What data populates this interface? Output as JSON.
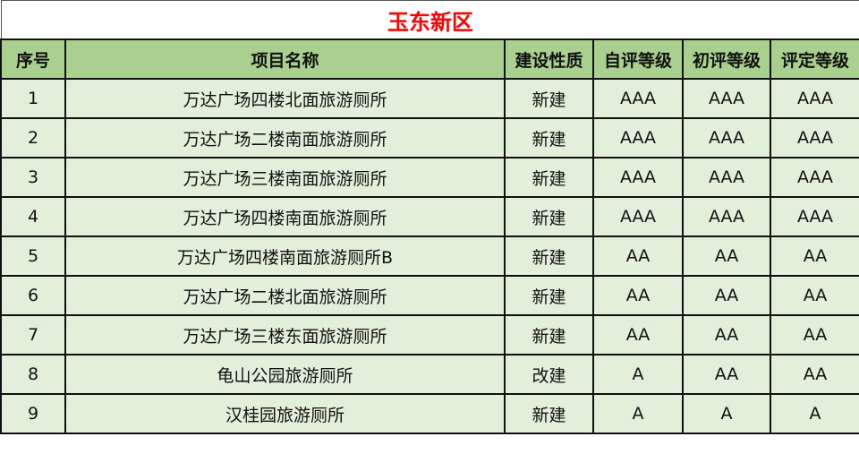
{
  "title": "玉东新区",
  "colors": {
    "title": "#ff0000",
    "header_bg": "#a9d08e",
    "row_bg": "#e2efda"
  },
  "headers": [
    "序号",
    "项目名称",
    "建设性质",
    "自评等级",
    "初评等级",
    "评定等级"
  ],
  "rows": [
    [
      "1",
      "万达广场四楼北面旅游厕所",
      "新建",
      "AAA",
      "AAA",
      "AAA"
    ],
    [
      "2",
      "万达广场二楼南面旅游厕所",
      "新建",
      "AAA",
      "AAA",
      "AAA"
    ],
    [
      "3",
      "万达广场三楼南面旅游厕所",
      "新建",
      "AAA",
      "AAA",
      "AAA"
    ],
    [
      "4",
      "万达广场四楼南面旅游厕所",
      "新建",
      "AAA",
      "AAA",
      "AAA"
    ],
    [
      "5",
      "万达广场四楼南面旅游厕所B",
      "新建",
      "AA",
      "AA",
      "AA"
    ],
    [
      "6",
      "万达广场二楼北面旅游厕所",
      "新建",
      "AA",
      "AA",
      "AA"
    ],
    [
      "7",
      "万达广场三楼东面旅游厕所",
      "新建",
      "AA",
      "AA",
      "AA"
    ],
    [
      "8",
      "龟山公园旅游厕所",
      "改建",
      "A",
      "AA",
      "AA"
    ],
    [
      "9",
      "汉桂园旅游厕所",
      "新建",
      "A",
      "A",
      "A"
    ]
  ]
}
